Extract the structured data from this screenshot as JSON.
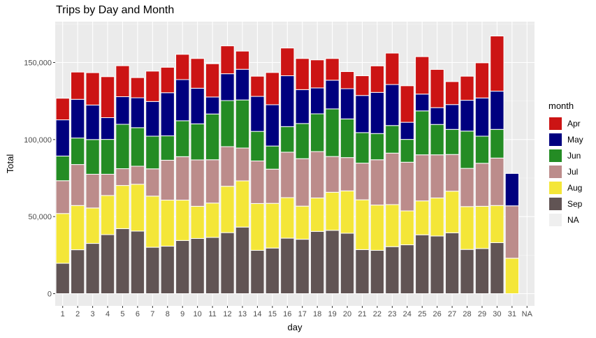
{
  "chart_data": {
    "type": "bar",
    "stacked": true,
    "title": "Trips by Day and Month",
    "xlabel": "day",
    "ylabel": "Total",
    "ylim": [
      0,
      175000
    ],
    "yticks": [
      0,
      50000,
      100000,
      150000
    ],
    "ytick_labels": [
      "0",
      "50,000",
      "100,000",
      "150,000"
    ],
    "categories": [
      "1",
      "2",
      "3",
      "4",
      "5",
      "6",
      "7",
      "8",
      "9",
      "10",
      "11",
      "12",
      "13",
      "14",
      "15",
      "16",
      "17",
      "18",
      "19",
      "20",
      "21",
      "22",
      "23",
      "24",
      "25",
      "26",
      "27",
      "28",
      "29",
      "30",
      "31",
      "NA"
    ],
    "legend_title": "month",
    "legend_position": "right",
    "grid": true,
    "series": [
      {
        "name": "Sep",
        "color": "#615454",
        "values": [
          19700,
          28500,
          32600,
          38300,
          42200,
          40600,
          30100,
          30800,
          34500,
          35800,
          36500,
          39600,
          43200,
          28100,
          29600,
          36000,
          35300,
          40400,
          41100,
          39200,
          28600,
          28100,
          30500,
          31700,
          38200,
          37400,
          39500,
          28700,
          29300,
          33100,
          0,
          0
        ]
      },
      {
        "name": "Aug",
        "color": "#f4e638",
        "values": [
          32300,
          28700,
          23000,
          25400,
          28000,
          30400,
          33200,
          29900,
          26200,
          20900,
          22300,
          30100,
          30000,
          30400,
          29000,
          26300,
          21500,
          21700,
          24700,
          27500,
          32300,
          29400,
          27300,
          22000,
          22000,
          24700,
          27000,
          27800,
          27400,
          24100,
          23000,
          0
        ]
      },
      {
        "name": "Jul",
        "color": "#bc8c8b",
        "values": [
          21300,
          26600,
          21900,
          13800,
          10900,
          11700,
          17700,
          25900,
          28200,
          30100,
          28100,
          25700,
          21300,
          27600,
          22200,
          29500,
          30800,
          30100,
          23200,
          21600,
          23800,
          29400,
          33400,
          31600,
          29900,
          28000,
          23800,
          24800,
          27900,
          30800,
          34000,
          0
        ]
      },
      {
        "name": "Jun",
        "color": "#248c24",
        "values": [
          16000,
          17200,
          22500,
          22600,
          28800,
          25000,
          21200,
          15800,
          23300,
          23400,
          29700,
          29900,
          31200,
          19200,
          15000,
          16600,
          22800,
          24500,
          30900,
          25100,
          19800,
          17000,
          17900,
          14800,
          28500,
          19700,
          16300,
          24200,
          17600,
          18600,
          0,
          0
        ]
      },
      {
        "name": "May",
        "color": "#00007f",
        "values": [
          23500,
          25100,
          22400,
          14100,
          17900,
          19400,
          22500,
          28000,
          26700,
          23100,
          11000,
          17400,
          19900,
          22700,
          26800,
          33000,
          22000,
          16800,
          18600,
          19600,
          24100,
          26700,
          26600,
          11100,
          10900,
          10900,
          16100,
          20000,
          24800,
          24800,
          21000,
          0
        ]
      },
      {
        "name": "Apr",
        "color": "#cc1414",
        "values": [
          14000,
          17700,
          21000,
          26600,
          20100,
          13100,
          19700,
          16500,
          16400,
          19300,
          21600,
          18100,
          11800,
          13100,
          20900,
          18000,
          20200,
          18200,
          14100,
          11100,
          12800,
          17200,
          20400,
          23700,
          24300,
          24800,
          14900,
          15600,
          22800,
          35800,
          0,
          0
        ]
      },
      {
        "name": "NA",
        "color": "#efefef",
        "values": [
          0,
          0,
          0,
          0,
          0,
          0,
          0,
          0,
          0,
          0,
          0,
          0,
          0,
          0,
          0,
          0,
          0,
          0,
          0,
          0,
          0,
          0,
          0,
          0,
          0,
          0,
          0,
          0,
          0,
          0,
          0,
          0
        ]
      }
    ],
    "legend_order": [
      "Apr",
      "May",
      "Jun",
      "Jul",
      "Aug",
      "Sep",
      "NA"
    ],
    "panel_background": "#ebebeb",
    "bar_outline": "#ffffff"
  }
}
